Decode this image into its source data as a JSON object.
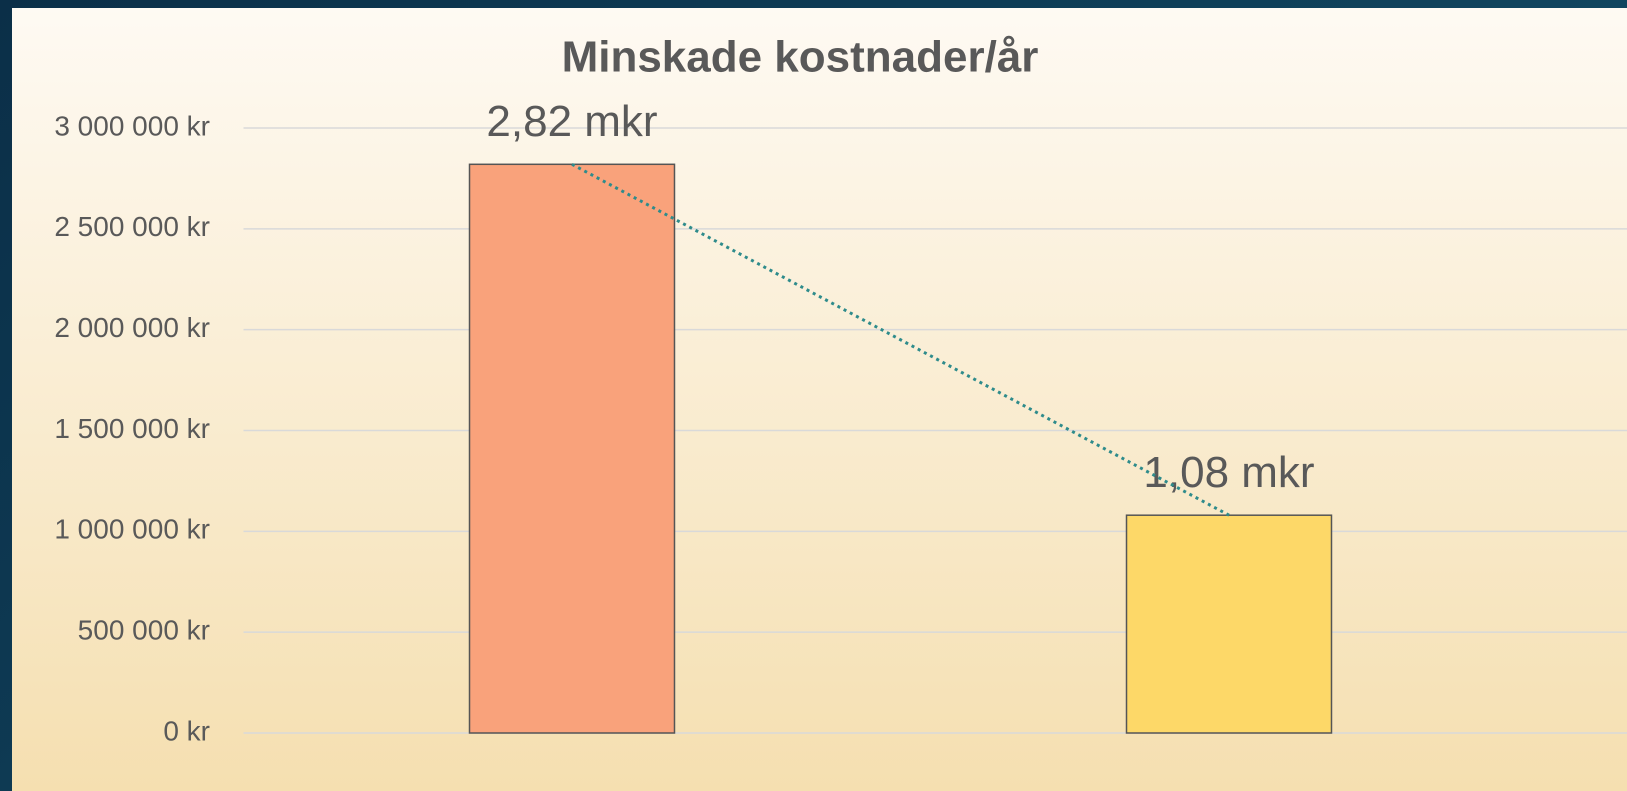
{
  "chart_data": {
    "type": "bar",
    "title": "Minskade kostnader/år",
    "categories": [
      null,
      null
    ],
    "values": [
      2820000,
      1080000
    ],
    "value_labels": [
      "2,82 mkr",
      "1,08 mkr"
    ],
    "colors": [
      "#f9a27b",
      "#fdd868"
    ],
    "ylim": [
      0,
      3000000
    ],
    "yticks": [
      {
        "value": 0,
        "label": "0 kr"
      },
      {
        "value": 500000,
        "label": "500 000 kr"
      },
      {
        "value": 1000000,
        "label": "1 000 000 kr"
      },
      {
        "value": 1500000,
        "label": "1 500 000 kr"
      },
      {
        "value": 2000000,
        "label": "2 000 000 kr"
      },
      {
        "value": 2500000,
        "label": "2 500 000 kr"
      },
      {
        "value": 3000000,
        "label": "3 000 000 kr"
      }
    ],
    "grid": true,
    "trendline": true
  }
}
